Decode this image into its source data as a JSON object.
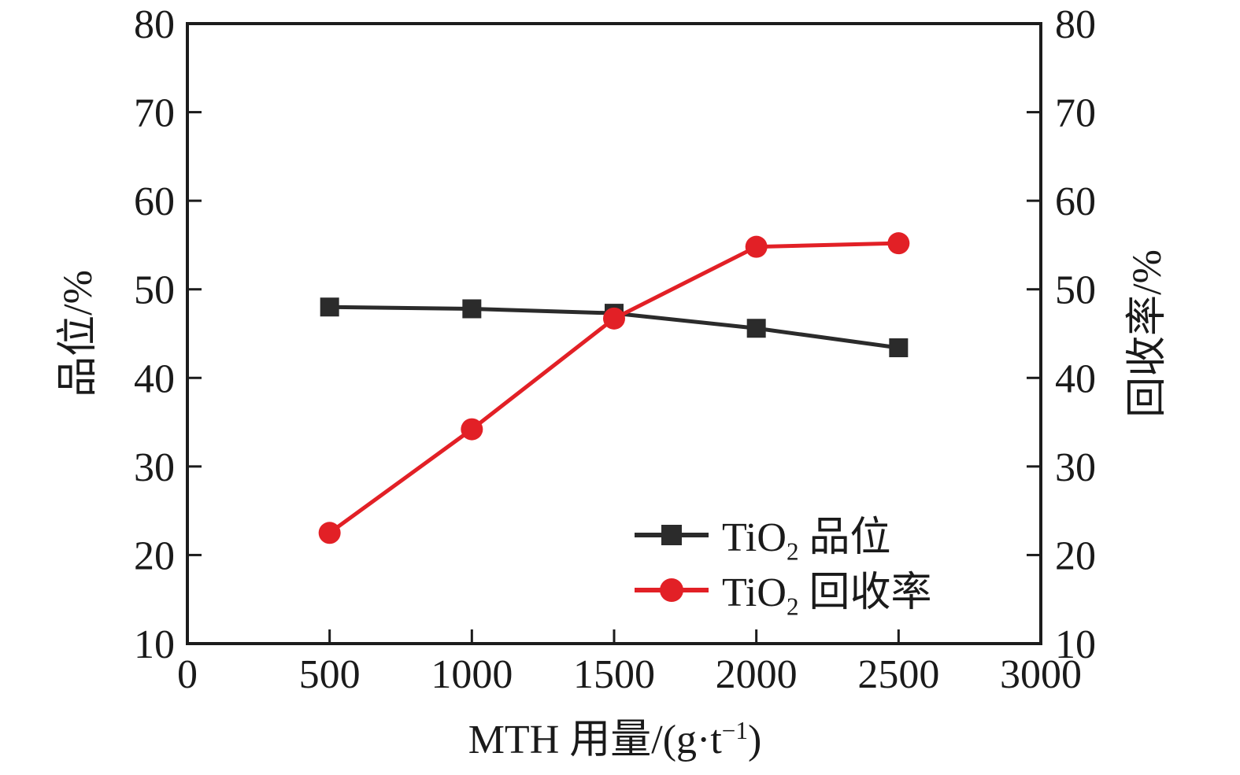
{
  "chart_data": {
    "type": "line",
    "x": [
      500,
      1000,
      1500,
      2000,
      2500
    ],
    "series": [
      {
        "name": "TiO₂ 品位",
        "axis": "left",
        "values": [
          48.0,
          47.8,
          47.3,
          45.6,
          43.4
        ],
        "color": "#2b2b2b",
        "marker": "square"
      },
      {
        "name": "TiO₂ 回收率",
        "axis": "right",
        "values": [
          22.5,
          34.2,
          46.7,
          54.8,
          55.2
        ],
        "color": "#e22026",
        "marker": "circle"
      }
    ],
    "title": "",
    "xlabel": {
      "prefix": "MTH 用量/(g·t",
      "sup": "−1",
      "suffix": ")"
    },
    "ylabel_left": "品位/%",
    "ylabel_right": "回收率/%",
    "xlim": [
      0,
      3000
    ],
    "ylim_left": [
      10,
      80
    ],
    "ylim_right": [
      10,
      80
    ],
    "x_ticks": [
      0,
      500,
      1000,
      1500,
      2000,
      2500,
      3000
    ],
    "y_ticks_left": [
      10,
      20,
      30,
      40,
      50,
      60,
      70,
      80
    ],
    "y_ticks_right": [
      10,
      20,
      30,
      40,
      50,
      60,
      70,
      80
    ],
    "grid": false,
    "axis_color": "#1c1c1c",
    "legend": {
      "position": "inside-bottom-right",
      "items": [
        {
          "prefix": "TiO",
          "sub": "2",
          "suffix": " 品位",
          "color": "#2b2b2b",
          "marker": "square"
        },
        {
          "prefix": "TiO",
          "sub": "2",
          "suffix": " 回收率",
          "color": "#e22026",
          "marker": "circle"
        }
      ]
    }
  }
}
